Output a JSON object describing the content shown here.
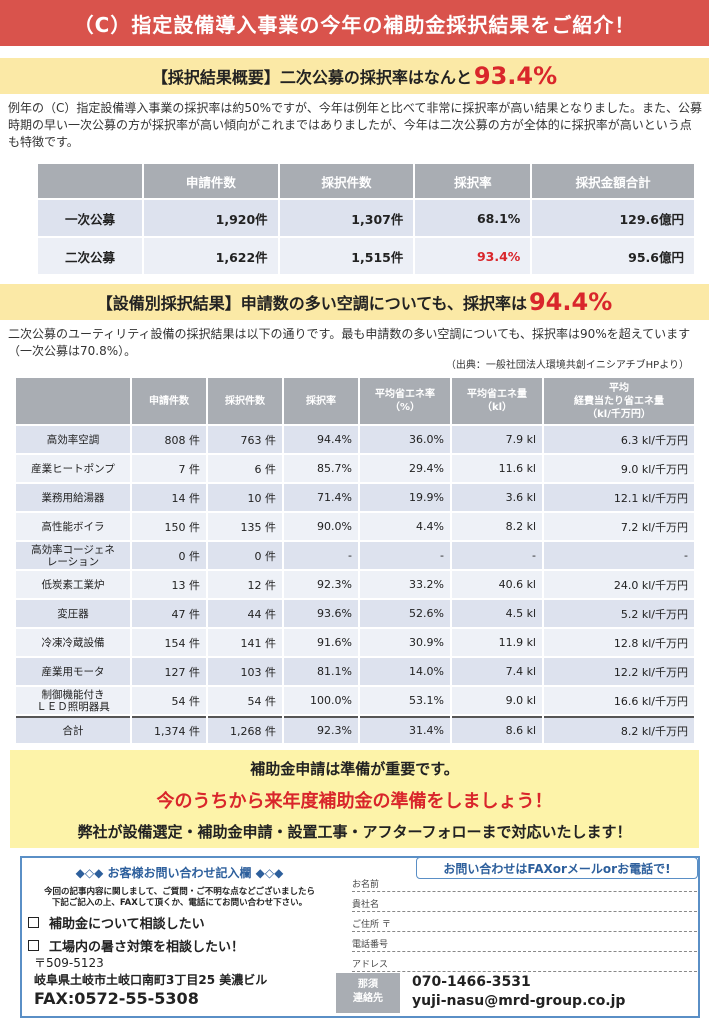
{
  "banner": "（C）指定設備導入事業の今年の補助金採択結果をご紹介！",
  "section1": {
    "heading_prefix": "【採択結果概要】二次公募の採択率はなんと",
    "heading_highlight": "93.4%",
    "paragraph": "例年の（C）指定設備導入事業の採択率は約50%ですが、今年は例年と比べて非常に採択率が高い結果となりました。また、公募時期の早い一次公募の方が採択率が高い傾向がこれまではありましたが、今年は二次公募の方が全体的に採択率が高いという点も特徴です。"
  },
  "summary_table": {
    "headers": [
      "",
      "申請件数",
      "採択件数",
      "採択率",
      "採択金額合計"
    ],
    "rows": [
      {
        "label": "一次公募",
        "applications": "1,920件",
        "adopted": "1,307件",
        "rate": "68.1%",
        "amount": "129.6億円"
      },
      {
        "label": "二次公募",
        "applications": "1,622件",
        "adopted": "1,515件",
        "rate": "93.4%",
        "amount": "95.6億円"
      }
    ]
  },
  "section2": {
    "heading_prefix": "【設備別採択結果】申請数の多い空調についても、採択率は",
    "heading_highlight": "94.4%",
    "paragraph": "二次公募のユーティリティ設備の採択結果は以下の通りです。最も申請数の多い空調についても、採択率は90%を超えています（一次公募は70.8%）。",
    "source": "（出典：一般社団法人環境共創イニシアチブHPより）"
  },
  "equipment_table": {
    "headers": [
      "",
      "申請件数",
      "採択件数",
      "採択率",
      "平均省エネ率\n（%）",
      "平均省エネ量\n（kl）",
      "平均\n経費当たり省エネ量\n（kl/千万円）"
    ],
    "rows": [
      {
        "name": "高効率空調",
        "apps": "808 件",
        "adopted": "763 件",
        "rate": "94.4%",
        "save_rate": "36.0%",
        "save_amt": "7.9 kl",
        "per_cost": "6.3 kl/千万円"
      },
      {
        "name": "産業ヒートポンプ",
        "apps": "7 件",
        "adopted": "6 件",
        "rate": "85.7%",
        "save_rate": "29.4%",
        "save_amt": "11.6 kl",
        "per_cost": "9.0 kl/千万円"
      },
      {
        "name": "業務用給湯器",
        "apps": "14 件",
        "adopted": "10 件",
        "rate": "71.4%",
        "save_rate": "19.9%",
        "save_amt": "3.6 kl",
        "per_cost": "12.1 kl/千万円"
      },
      {
        "name": "高性能ボイラ",
        "apps": "150 件",
        "adopted": "135 件",
        "rate": "90.0%",
        "save_rate": "4.4%",
        "save_amt": "8.2 kl",
        "per_cost": "7.2 kl/千万円"
      },
      {
        "name": "高効率コージェネ\nレーション",
        "apps": "0 件",
        "adopted": "0 件",
        "rate": "-",
        "save_rate": "-",
        "save_amt": "-",
        "per_cost": "-"
      },
      {
        "name": "低炭素工業炉",
        "apps": "13 件",
        "adopted": "12 件",
        "rate": "92.3%",
        "save_rate": "33.2%",
        "save_amt": "40.6 kl",
        "per_cost": "24.0 kl/千万円"
      },
      {
        "name": "変圧器",
        "apps": "47 件",
        "adopted": "44 件",
        "rate": "93.6%",
        "save_rate": "52.6%",
        "save_amt": "4.5 kl",
        "per_cost": "5.2 kl/千万円"
      },
      {
        "name": "冷凍冷蔵設備",
        "apps": "154 件",
        "adopted": "141 件",
        "rate": "91.6%",
        "save_rate": "30.9%",
        "save_amt": "11.9 kl",
        "per_cost": "12.8 kl/千万円"
      },
      {
        "name": "産業用モータ",
        "apps": "127 件",
        "adopted": "103 件",
        "rate": "81.1%",
        "save_rate": "14.0%",
        "save_amt": "7.4 kl",
        "per_cost": "12.2 kl/千万円"
      },
      {
        "name": "制御機能付き\nＬＥＤ照明器具",
        "apps": "54 件",
        "adopted": "54 件",
        "rate": "100.0%",
        "save_rate": "53.1%",
        "save_amt": "9.0 kl",
        "per_cost": "16.6 kl/千万円"
      }
    ],
    "total": {
      "name": "合計",
      "apps": "1,374 件",
      "adopted": "1,268 件",
      "rate": "92.3%",
      "save_rate": "31.4%",
      "save_amt": "8.6 kl",
      "per_cost": "8.2 kl/千万円"
    }
  },
  "cta": {
    "line1": "補助金申請は準備が重要です。",
    "line2": "今のうちから来年度補助金の準備をしましょう！",
    "line3": "弊社が設備選定・補助金申請・設置工事・アフターフォローまで対応いたします！"
  },
  "inquiry": {
    "title": "◆◇◆ お客様お問い合わせ記入欄 ◆◇◆",
    "note_line1": "今回の記事内容に関しまして、ご質問・ご不明な点などございましたら",
    "note_line2": "下記ご記入の上、FAXして頂くか、電話にてお問い合わせ下さい。",
    "options": [
      "補助金について相談したい",
      "工場内の暑さ対策を相談したい！"
    ],
    "postal": "〒509-5123",
    "address": "岐阜県土岐市土岐口南町3丁目25 美濃ビル",
    "fax": "FAX:0572-55-5308",
    "badge": "お問い合わせはFAXorメールorお電話で!",
    "fields": [
      "お名前",
      "貴社名",
      "ご住所 〒",
      "電話番号",
      "アドレス"
    ],
    "required_label_line1": "那須",
    "required_label_line2": "連絡先",
    "phone": "070-1466-3531",
    "email": "yuji-nasu@mrd-group.co.jp"
  }
}
